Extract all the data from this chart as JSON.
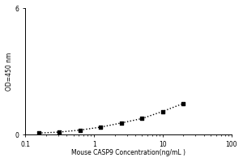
{
  "x_data": [
    0.156,
    0.313,
    0.625,
    1.25,
    2.5,
    5.0,
    10.0,
    20.0
  ],
  "y_data": [
    0.068,
    0.115,
    0.21,
    0.35,
    0.55,
    0.76,
    1.1,
    1.48
  ],
  "xlabel": "Mouse CASP9 Concentration(ng/mL )",
  "ylabel": "OD=450 nm",
  "xlim": [
    0.1,
    100
  ],
  "ylim_min": 0.0,
  "ylim_max": 6.0,
  "yticks": [
    0,
    6
  ],
  "ytick_labels": [
    "0",
    "6"
  ],
  "xticks": [
    0.1,
    1,
    10,
    100
  ],
  "xtick_labels": [
    "0.1",
    "1",
    "10",
    "100"
  ],
  "marker_color": "black",
  "marker_style": "s",
  "marker_size": 3.5,
  "line_style": ":",
  "line_color": "black",
  "line_width": 1.0,
  "xlabel_fontsize": 5.5,
  "ylabel_fontsize": 5.5,
  "tick_fontsize": 5.5,
  "background_color": "#ffffff"
}
